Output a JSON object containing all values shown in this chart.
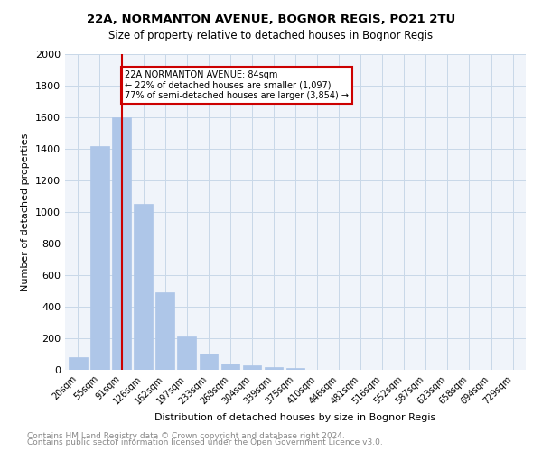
{
  "title1": "22A, NORMANTON AVENUE, BOGNOR REGIS, PO21 2TU",
  "title2": "Size of property relative to detached houses in Bognor Regis",
  "xlabel": "Distribution of detached houses by size in Bognor Regis",
  "ylabel": "Number of detached properties",
  "categories": [
    "20sqm",
    "55sqm",
    "91sqm",
    "126sqm",
    "162sqm",
    "197sqm",
    "233sqm",
    "268sqm",
    "304sqm",
    "339sqm",
    "375sqm",
    "410sqm",
    "446sqm",
    "481sqm",
    "516sqm",
    "552sqm",
    "587sqm",
    "623sqm",
    "658sqm",
    "694sqm",
    "729sqm"
  ],
  "values": [
    80,
    1420,
    1600,
    1050,
    490,
    210,
    105,
    42,
    30,
    18,
    12,
    0,
    0,
    0,
    0,
    0,
    0,
    0,
    0,
    0,
    0
  ],
  "bar_color": "#aec6e8",
  "bar_edge_color": "#aec6e8",
  "grid_color": "#c8d8e8",
  "bg_color": "#f0f4fa",
  "vline_x": 2,
  "vline_color": "#cc0000",
  "annotation_text": "22A NORMANTON AVENUE: 84sqm\n← 22% of detached houses are smaller (1,097)\n77% of semi-detached houses are larger (3,854) →",
  "annotation_box_color": "#cc0000",
  "ylim": [
    0,
    2000
  ],
  "yticks": [
    0,
    200,
    400,
    600,
    800,
    1000,
    1200,
    1400,
    1600,
    1800,
    2000
  ],
  "footer1": "Contains HM Land Registry data © Crown copyright and database right 2024.",
  "footer2": "Contains public sector information licensed under the Open Government Licence v3.0."
}
